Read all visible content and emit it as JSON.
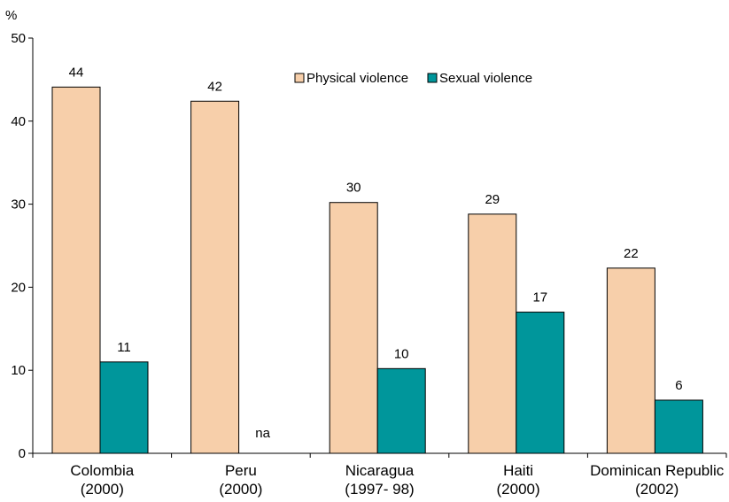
{
  "chart_data": {
    "type": "bar",
    "y_unit": "%",
    "ylim": [
      0,
      50
    ],
    "yticks": [
      0,
      10,
      20,
      30,
      40,
      50
    ],
    "grid": false,
    "legend_position": "top-right",
    "categories": [
      {
        "line1": "Colombia",
        "line2": "(2000)"
      },
      {
        "line1": "Peru",
        "line2": "(2000)"
      },
      {
        "line1": "Nicaragua",
        "line2": "(1997- 98)"
      },
      {
        "line1": "Haiti",
        "line2": "(2000)"
      },
      {
        "line1": "Dominican Republic",
        "line2": "(2002)"
      }
    ],
    "series": [
      {
        "name": "Physical violence",
        "color": "#F7CFAA",
        "values": [
          44.1,
          42.4,
          30.2,
          28.8,
          22.3
        ],
        "labels": [
          "44",
          "42",
          "30",
          "29",
          "22"
        ]
      },
      {
        "name": "Sexual violence",
        "color": "#00969B",
        "values": [
          11,
          null,
          10.2,
          17,
          6.4
        ],
        "labels": [
          "11",
          "na",
          "10",
          "17",
          "6"
        ]
      }
    ]
  }
}
